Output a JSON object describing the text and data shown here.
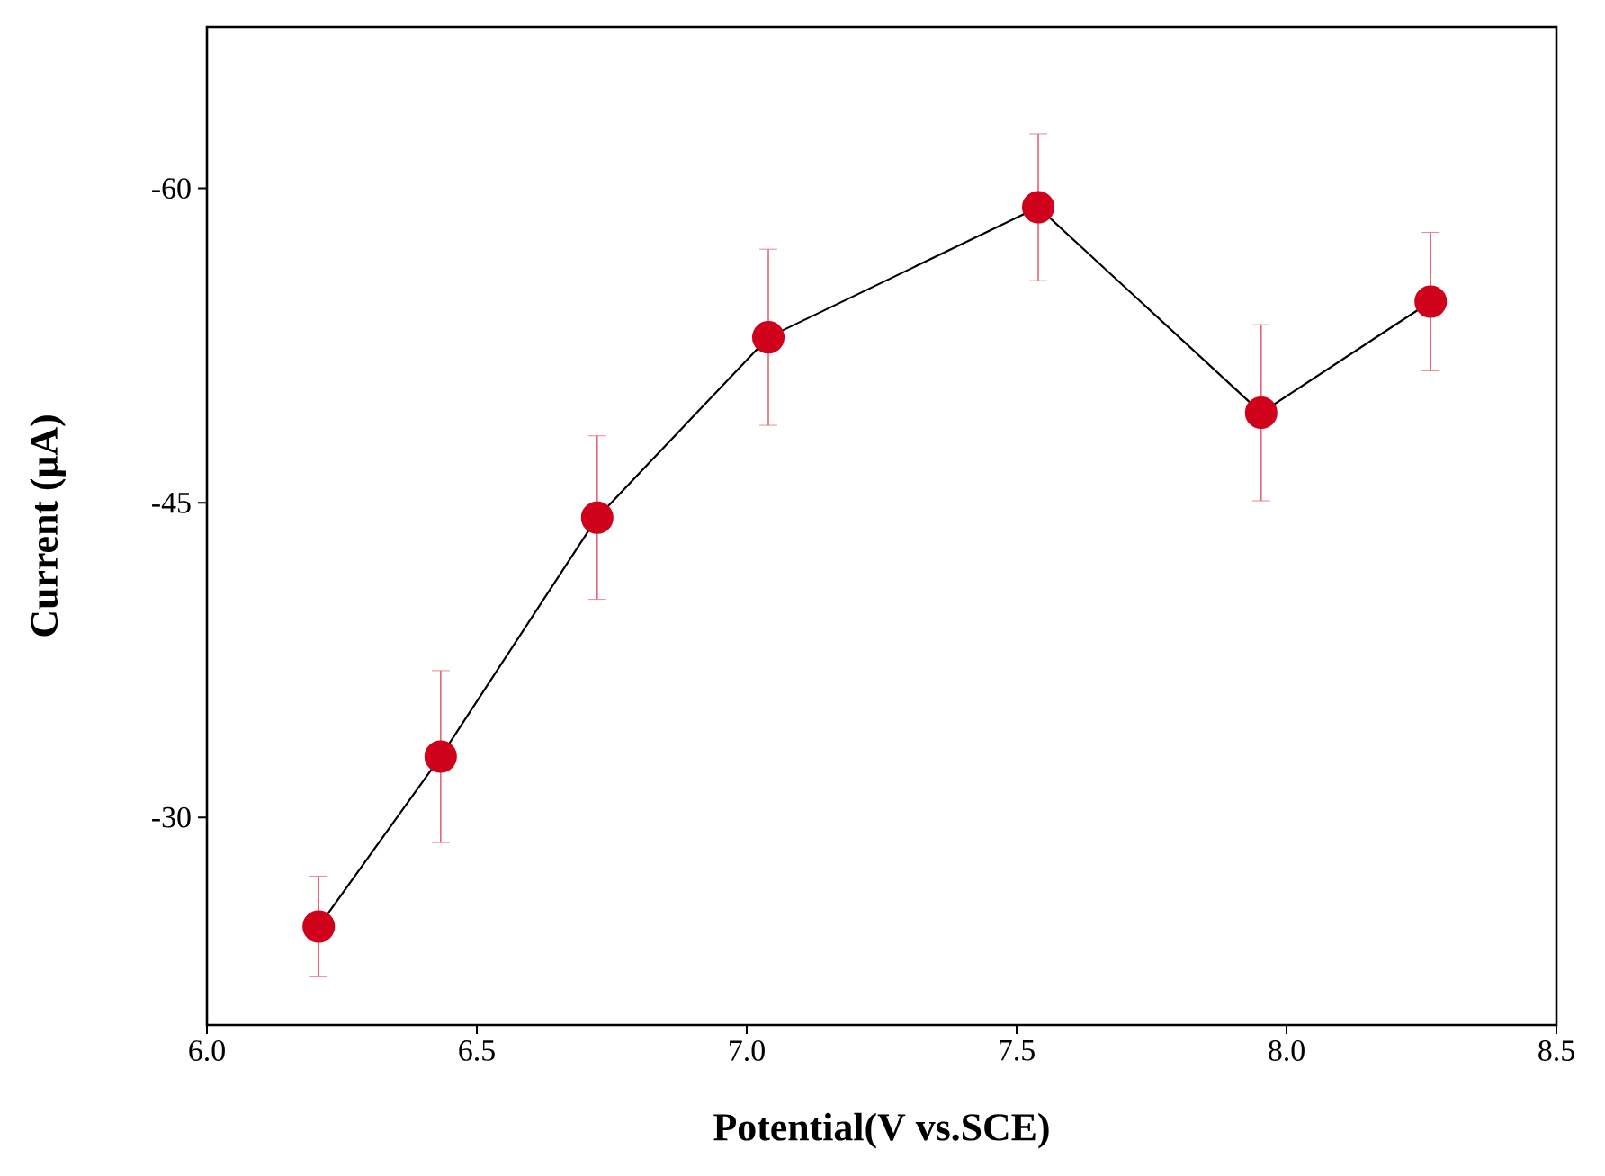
{
  "chart_data": {
    "type": "line",
    "xlabel": "Potential(V vs.SCE)",
    "ylabel": "Current (μA)",
    "x": [
      6.207,
      6.433,
      6.723,
      7.04,
      7.54,
      7.953,
      8.267
    ],
    "series": [
      {
        "color": "#d0021b",
        "values": [
          -24.8,
          -32.9,
          -44.3,
          -52.9,
          -59.1,
          -49.3,
          -54.6
        ],
        "errors": [
          2.4,
          4.1,
          3.9,
          4.2,
          3.5,
          4.2,
          3.3
        ]
      }
    ],
    "xlim": [
      6.0,
      8.5
    ],
    "ylim": [
      -20.1,
      -67.7
    ],
    "xticks": [
      {
        "value": 6.0,
        "label": "6.0"
      },
      {
        "value": 6.5,
        "label": "6.5"
      },
      {
        "value": 7.0,
        "label": "7.0"
      },
      {
        "value": 7.5,
        "label": "7.5"
      },
      {
        "value": 8.0,
        "label": "8.0"
      },
      {
        "value": 8.5,
        "label": "8.5"
      }
    ],
    "yticks": [
      -60,
      -45,
      -30
    ],
    "marker": "circle",
    "line_style": "solid",
    "grid": false
  }
}
